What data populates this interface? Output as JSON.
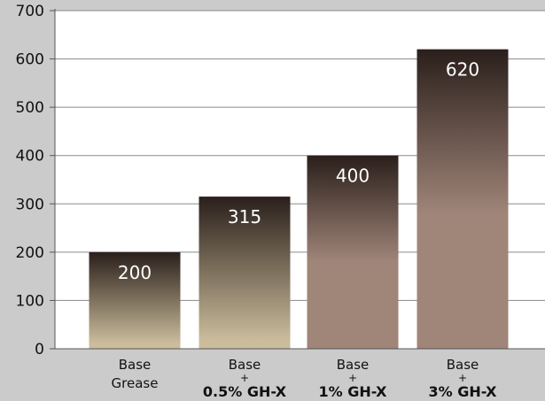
{
  "chart_data": {
    "type": "bar",
    "title": "",
    "xlabel": "",
    "ylabel": "",
    "ylim": [
      0,
      700
    ],
    "yticks": [
      0,
      100,
      200,
      300,
      400,
      500,
      600,
      700
    ],
    "grid": true,
    "legend": "none",
    "categories": [
      [
        "Base",
        "Grease"
      ],
      [
        "Base",
        "+",
        "0.5% GH-X"
      ],
      [
        "Base",
        "+",
        "1% GH-X"
      ],
      [
        "Base",
        "+",
        "3% GH-X"
      ]
    ],
    "values": [
      200,
      315,
      400,
      620
    ],
    "data_labels": [
      "200",
      "315",
      "400",
      "620"
    ],
    "colors": {
      "background": "#cbcbcb",
      "plot_area": "#ffffff",
      "grid": "#8a8a8a",
      "axis": "#555555",
      "bar_dark": "#2a1f1b",
      "bar_light_tan": "#cbbd9c",
      "bar_light_mauve": "#a08579"
    }
  }
}
